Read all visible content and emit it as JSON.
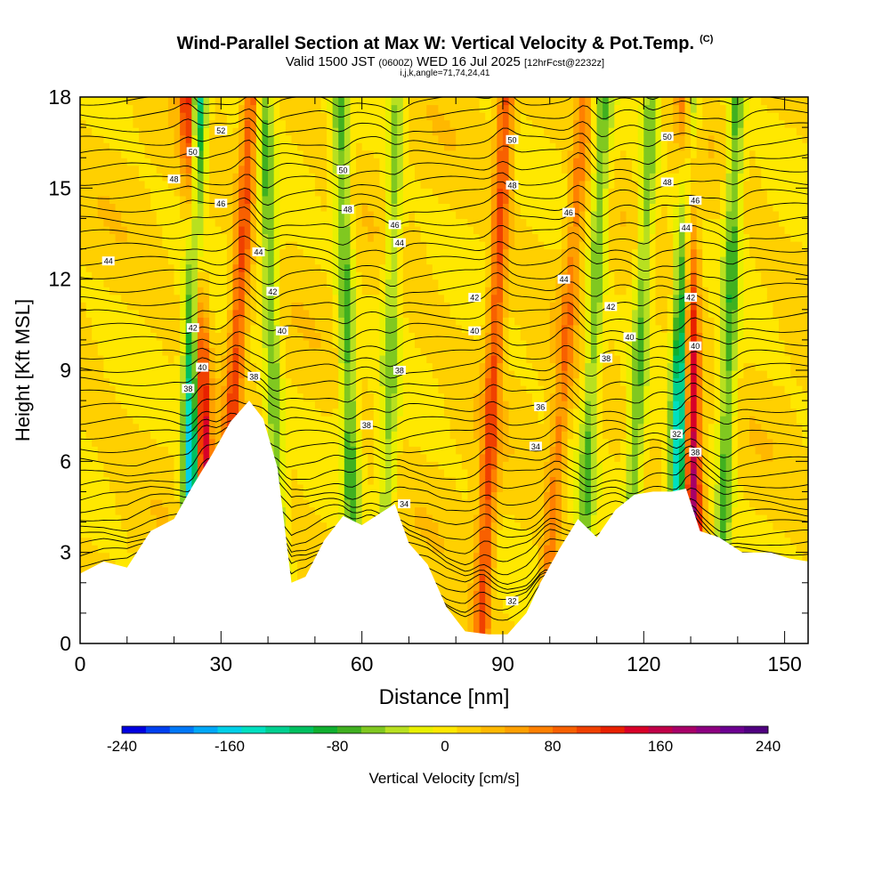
{
  "title": {
    "main": "Wind-Parallel Section at Max W: Vertical Velocity & Pot.Temp.",
    "copyright": "(C)",
    "valid_prefix": "Valid 1500 JST",
    "valid_utc": "(0600Z)",
    "valid_date": "WED 16 Jul 2025",
    "forecast": "[12hrFcst@2232z]",
    "indices": "i,j,k,angle=71,74,24,41"
  },
  "chart_data": {
    "type": "heatmap",
    "xlabel": "Distance [nm]",
    "ylabel": "Height [Kft MSL]",
    "xlim": [
      0,
      155
    ],
    "ylim": [
      0,
      18
    ],
    "x_ticks": [
      0,
      30,
      60,
      90,
      120,
      150
    ],
    "y_ticks": [
      0,
      3,
      6,
      9,
      12,
      15,
      18
    ],
    "colorbar": {
      "label": "Vertical Velocity [cm/s]",
      "range": [
        -240,
        240
      ],
      "ticks": [
        -240,
        -160,
        -80,
        0,
        80,
        160,
        240
      ],
      "colors": [
        "#0000e0",
        "#0040f0",
        "#0078f8",
        "#00a8f8",
        "#00d0e8",
        "#00e0c0",
        "#00d090",
        "#00c060",
        "#10b030",
        "#40b020",
        "#80c820",
        "#b8e020",
        "#e8f000",
        "#ffe800",
        "#ffd000",
        "#ffb800",
        "#ffa000",
        "#ff8000",
        "#f86000",
        "#f04000",
        "#e82000",
        "#d80028",
        "#c00048",
        "#a80068",
        "#8c0080",
        "#6c0090",
        "#500080"
      ]
    },
    "terrain_kft": [
      [
        0,
        2.3
      ],
      [
        5,
        2.7
      ],
      [
        10,
        2.5
      ],
      [
        15,
        3.7
      ],
      [
        20,
        4.1
      ],
      [
        24,
        5.2
      ],
      [
        28,
        6.2
      ],
      [
        32,
        7.3
      ],
      [
        36,
        8.0
      ],
      [
        39,
        7.4
      ],
      [
        42,
        5.8
      ],
      [
        45,
        2.0
      ],
      [
        48,
        2.2
      ],
      [
        52,
        3.4
      ],
      [
        56,
        4.2
      ],
      [
        60,
        3.9
      ],
      [
        63,
        4.2
      ],
      [
        67,
        4.6
      ],
      [
        70,
        3.3
      ],
      [
        74,
        2.6
      ],
      [
        78,
        1.2
      ],
      [
        82,
        0.4
      ],
      [
        87,
        0.3
      ],
      [
        91,
        0.3
      ],
      [
        95,
        1.0
      ],
      [
        98,
        2.0
      ],
      [
        102,
        3.1
      ],
      [
        106,
        4.1
      ],
      [
        110,
        3.5
      ],
      [
        114,
        4.4
      ],
      [
        118,
        4.9
      ],
      [
        122,
        5.0
      ],
      [
        126,
        5.0
      ],
      [
        129,
        5.1
      ],
      [
        132,
        3.7
      ],
      [
        136,
        3.5
      ],
      [
        141,
        3.0
      ],
      [
        147,
        3.0
      ],
      [
        151,
        2.8
      ],
      [
        155,
        2.7
      ]
    ],
    "velocity_features": [
      {
        "x": 25.5,
        "tilt_nm_per_kft": -0.25,
        "w_cms": 170
      },
      {
        "x": 24,
        "tilt_nm_per_kft": 0.1,
        "w_cms": -200
      },
      {
        "x": 33,
        "tilt_nm_per_kft": 0.4,
        "w_cms": 90
      },
      {
        "x": 41,
        "tilt_nm_per_kft": -0.2,
        "w_cms": -70
      },
      {
        "x": 57,
        "tilt_nm_per_kft": -0.2,
        "w_cms": -80
      },
      {
        "x": 66,
        "tilt_nm_per_kft": 0.15,
        "w_cms": -60
      },
      {
        "x": 88,
        "tilt_nm_per_kft": 0.3,
        "w_cms": 90
      },
      {
        "x": 103,
        "tilt_nm_per_kft": 0.5,
        "w_cms": 60
      },
      {
        "x": 109,
        "tilt_nm_per_kft": 0.3,
        "w_cms": -70
      },
      {
        "x": 119,
        "tilt_nm_per_kft": 0.3,
        "w_cms": -70
      },
      {
        "x": 130,
        "tilt_nm_per_kft": -0.1,
        "w_cms": 170
      },
      {
        "x": 128,
        "tilt_nm_per_kft": 0.2,
        "w_cms": -180
      },
      {
        "x": 138,
        "tilt_nm_per_kft": 0.2,
        "w_cms": -80
      }
    ],
    "isentrope_labels": [
      {
        "text": "50",
        "x": 24,
        "y": 16.2
      },
      {
        "text": "52",
        "x": 30,
        "y": 16.9
      },
      {
        "text": "48",
        "x": 20,
        "y": 15.3
      },
      {
        "text": "46",
        "x": 30,
        "y": 14.5
      },
      {
        "text": "44",
        "x": 6,
        "y": 12.6
      },
      {
        "text": "44",
        "x": 38,
        "y": 12.9
      },
      {
        "text": "42",
        "x": 41,
        "y": 11.6
      },
      {
        "text": "42",
        "x": 24,
        "y": 10.4
      },
      {
        "text": "40",
        "x": 43,
        "y": 10.3
      },
      {
        "text": "40",
        "x": 26,
        "y": 9.1
      },
      {
        "text": "38",
        "x": 23,
        "y": 8.4
      },
      {
        "text": "38",
        "x": 37,
        "y": 8.8
      },
      {
        "text": "50",
        "x": 56,
        "y": 15.6
      },
      {
        "text": "48",
        "x": 57,
        "y": 14.3
      },
      {
        "text": "46",
        "x": 67,
        "y": 13.8
      },
      {
        "text": "44",
        "x": 68,
        "y": 13.2
      },
      {
        "text": "38",
        "x": 61,
        "y": 7.2
      },
      {
        "text": "38",
        "x": 68,
        "y": 9.0
      },
      {
        "text": "34",
        "x": 69,
        "y": 4.6
      },
      {
        "text": "50",
        "x": 92,
        "y": 16.6
      },
      {
        "text": "48",
        "x": 92,
        "y": 15.1
      },
      {
        "text": "46",
        "x": 104,
        "y": 14.2
      },
      {
        "text": "44",
        "x": 103,
        "y": 12.0
      },
      {
        "text": "42",
        "x": 84,
        "y": 11.4
      },
      {
        "text": "42",
        "x": 113,
        "y": 11.1
      },
      {
        "text": "40",
        "x": 84,
        "y": 10.3
      },
      {
        "text": "40",
        "x": 117,
        "y": 10.1
      },
      {
        "text": "38",
        "x": 112,
        "y": 9.4
      },
      {
        "text": "36",
        "x": 98,
        "y": 7.8
      },
      {
        "text": "34",
        "x": 97,
        "y": 6.5
      },
      {
        "text": "32",
        "x": 92,
        "y": 1.4
      },
      {
        "text": "50",
        "x": 125,
        "y": 16.7
      },
      {
        "text": "48",
        "x": 125,
        "y": 15.2
      },
      {
        "text": "46",
        "x": 131,
        "y": 14.6
      },
      {
        "text": "44",
        "x": 129,
        "y": 13.7
      },
      {
        "text": "42",
        "x": 130,
        "y": 11.4
      },
      {
        "text": "40",
        "x": 131,
        "y": 9.8
      },
      {
        "text": "38",
        "x": 131,
        "y": 6.3
      },
      {
        "text": "32",
        "x": 127,
        "y": 6.9
      }
    ]
  }
}
